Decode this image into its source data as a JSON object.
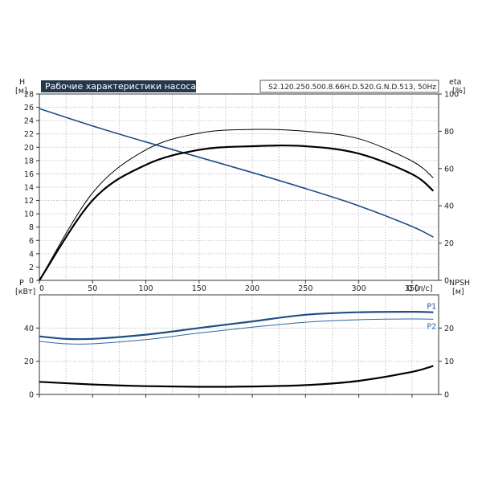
{
  "chart_data": [
    {
      "type": "line",
      "title": "Рабочие характеристики насоса",
      "model": "S2.120.250.500.8.66H.D.520.G.N.D.513, 50Hz",
      "x_axis": {
        "label": "Q [л/с]",
        "lim": [
          0,
          375
        ],
        "ticks": [
          0,
          50,
          100,
          150,
          200,
          250,
          300,
          350
        ],
        "grid_step": 25
      },
      "y_axis_left": {
        "label_top": "H",
        "label_bottom": "[м]",
        "lim": [
          0,
          28
        ],
        "ticks": [
          0,
          2,
          4,
          6,
          8,
          10,
          12,
          14,
          16,
          18,
          20,
          22,
          24,
          26,
          28
        ]
      },
      "y_axis_right": {
        "label_top": "eta",
        "label_bottom": "[%]",
        "lim": [
          0,
          100
        ],
        "ticks": [
          0,
          20,
          40,
          60,
          80,
          100
        ]
      },
      "grid": true,
      "series": [
        {
          "axis": "left",
          "color": "#1f4e86",
          "width": 1.6,
          "x": [
            0,
            50,
            100,
            150,
            200,
            250,
            300,
            350,
            370
          ],
          "y": [
            25.8,
            23.2,
            20.8,
            18.5,
            16.2,
            13.8,
            11.2,
            8.1,
            6.5
          ]
        },
        {
          "axis": "right",
          "color": "#000000",
          "width": 1.0,
          "x": [
            0,
            50,
            100,
            150,
            200,
            250,
            300,
            350,
            370
          ],
          "y": [
            0,
            47,
            70,
            79,
            81,
            80,
            76,
            64,
            55
          ]
        },
        {
          "axis": "right",
          "color": "#000000",
          "width": 2.2,
          "x": [
            0,
            50,
            100,
            150,
            200,
            250,
            300,
            350,
            370
          ],
          "y": [
            0,
            43,
            62,
            70,
            72,
            72,
            68,
            57,
            48
          ]
        }
      ]
    },
    {
      "type": "line",
      "x_axis": {
        "lim": [
          0,
          375
        ],
        "ticks": [
          0,
          50,
          100,
          150,
          200,
          250,
          300,
          350
        ],
        "grid_step": 25
      },
      "y_axis_left": {
        "label_top": "P",
        "label_bottom": "[кВт]",
        "lim": [
          0,
          60
        ],
        "ticks": [
          0,
          20,
          40
        ]
      },
      "y_axis_right": {
        "label_top": "NPSH",
        "label_bottom": "[м]",
        "lim": [
          0,
          30
        ],
        "ticks": [
          0,
          10,
          20
        ]
      },
      "grid": true,
      "series": [
        {
          "name": "P1",
          "axis": "left",
          "color": "#1f4e86",
          "width": 2.2,
          "x": [
            0,
            25,
            50,
            100,
            150,
            200,
            250,
            300,
            350,
            370
          ],
          "y": [
            35,
            33.5,
            33.5,
            36,
            40,
            44,
            48,
            49.5,
            49.8,
            49.5
          ]
        },
        {
          "name": "P2",
          "axis": "left",
          "color": "#2a68a8",
          "width": 1.0,
          "x": [
            0,
            25,
            50,
            100,
            150,
            200,
            250,
            300,
            350,
            370
          ],
          "y": [
            32,
            30.5,
            30.5,
            33,
            37,
            40.5,
            43.5,
            45,
            45.5,
            45.3
          ]
        },
        {
          "axis": "right",
          "color": "#000000",
          "width": 2.2,
          "x": [
            0,
            50,
            100,
            150,
            200,
            250,
            300,
            350,
            370
          ],
          "y": [
            3.8,
            3,
            2.5,
            2.3,
            2.4,
            2.8,
            4.1,
            6.8,
            8.6
          ]
        }
      ]
    }
  ]
}
